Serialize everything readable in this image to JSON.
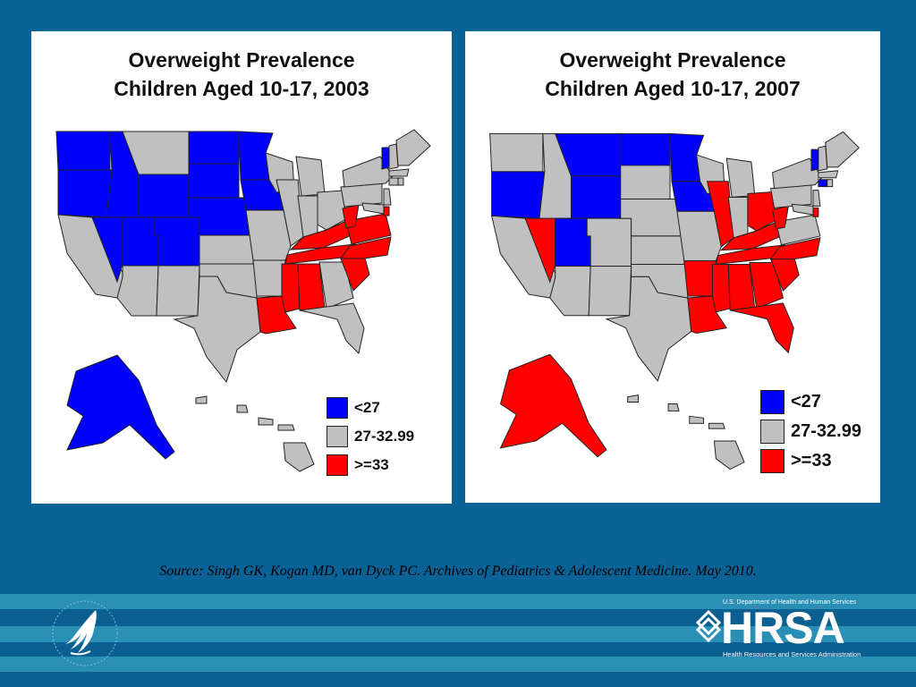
{
  "maps": [
    {
      "title_line1": "Overweight Prevalence",
      "title_line2": "Children Aged 10-17, 2003",
      "legend": [
        {
          "label": "<27",
          "color": "#0000ff"
        },
        {
          "label": "27-32.99",
          "color": "#c0c0c0"
        },
        {
          "label": ">=33",
          "color": "#ff0000"
        }
      ],
      "state_categories": {
        "WA": "<27",
        "OR": "<27",
        "ID": "<27",
        "MT": "27-32.99",
        "WY": "<27",
        "NV": "<27",
        "UT": "<27",
        "CO": "<27",
        "ND": "<27",
        "SD": "<27",
        "NE": "<27",
        "MN": "<27",
        "IA": "<27",
        "AK": "<27",
        "VT": "<27",
        "KY": ">=33",
        "TN": ">=33",
        "NC": ">=33",
        "SC": ">=33",
        "AL": ">=33",
        "MS": ">=33",
        "LA": ">=33",
        "VA": ">=33",
        "WV": ">=33",
        "DE": ">=33"
      }
    },
    {
      "title_line1": "Overweight Prevalence",
      "title_line2": "Children Aged 10-17, 2007",
      "legend": [
        {
          "label": "<27",
          "color": "#0000ff"
        },
        {
          "label": "27-32.99",
          "color": "#c0c0c0"
        },
        {
          "label": ">=33",
          "color": "#ff0000"
        }
      ],
      "state_categories": {
        "OR": "<27",
        "MT": "<27",
        "WY": "<27",
        "UT": "<27",
        "ND": "<27",
        "MN": "<27",
        "IA": "<27",
        "VT": "<27",
        "CT": "<27",
        "NV": ">=33",
        "IL": ">=33",
        "OH": ">=33",
        "KY": ">=33",
        "TN": ">=33",
        "WV": ">=33",
        "NC": ">=33",
        "SC": ">=33",
        "GA": ">=33",
        "FL": ">=33",
        "AL": ">=33",
        "MS": ">=33",
        "LA": ">=33",
        "AR": ">=33",
        "AK": ">=33",
        "DE": ">=33"
      }
    }
  ],
  "source_text": "Source: Singh GK, Kogan MD, van Dyck PC. Archives of Pediatrics & Adolescent Medicine. May 2010.",
  "footer": {
    "hrsa_top": "U.S. Department of Health and Human Services",
    "hrsa_word": "HRSA",
    "hrsa_sub": "Health Resources and Services Administration"
  },
  "colors": {
    "background": "#0a6297",
    "blue": "#0000ff",
    "gray": "#c0c0c0",
    "red": "#ff0000"
  }
}
